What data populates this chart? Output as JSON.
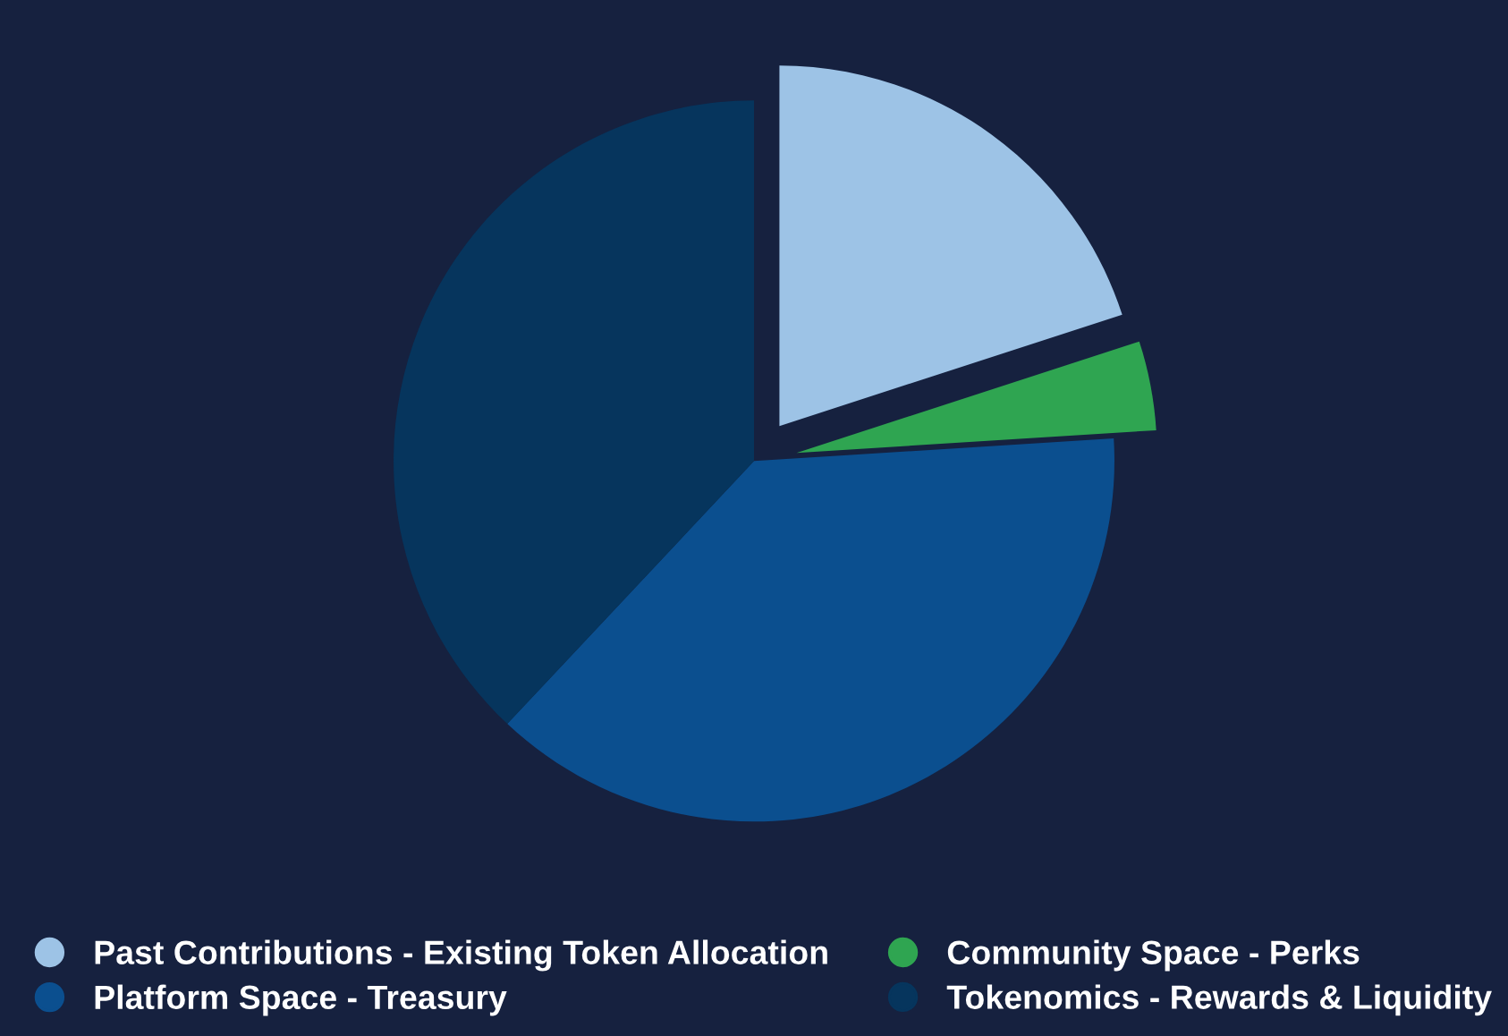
{
  "chart_data": {
    "type": "pie",
    "categories": [
      "Past Contributions - Existing Token Allocation",
      "Community Space - Perks",
      "Platform Space - Treasury",
      "Tokenomics - Rewards & Liquidity"
    ],
    "values": [
      20,
      4,
      38,
      38
    ],
    "colors": [
      "#9dc3e6",
      "#2fa551",
      "#0b4f8f",
      "#06355d"
    ],
    "legend": "bottom"
  }
}
